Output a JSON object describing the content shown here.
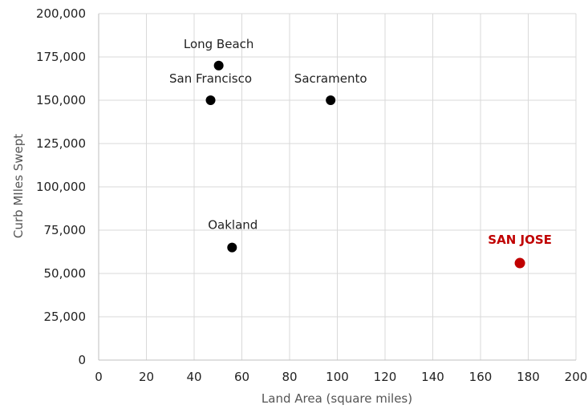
{
  "chart_data": {
    "type": "scatter",
    "xlabel": "Land Area (square miles)",
    "ylabel": "Curb MIles Swept",
    "xlim": [
      0,
      200
    ],
    "ylim": [
      0,
      200000
    ],
    "x_ticks": [
      0,
      20,
      40,
      60,
      80,
      100,
      120,
      140,
      160,
      180,
      200
    ],
    "y_ticks": [
      0,
      25000,
      50000,
      75000,
      100000,
      125000,
      150000,
      175000,
      200000
    ],
    "y_tick_labels": [
      "0",
      "25,000",
      "50,000",
      "75,000",
      "100,000",
      "125,000",
      "150,000",
      "175,000",
      "200,000"
    ],
    "grid": true,
    "points": [
      {
        "label": "Long Beach",
        "x": 50.3,
        "y": 170000,
        "highlight": false
      },
      {
        "label": "San Francisco",
        "x": 46.9,
        "y": 150000,
        "highlight": false
      },
      {
        "label": "Sacramento",
        "x": 97.2,
        "y": 150000,
        "highlight": false
      },
      {
        "label": "Oakland",
        "x": 55.9,
        "y": 65000,
        "highlight": false
      },
      {
        "label": "SAN JOSE",
        "x": 176.5,
        "y": 56000,
        "highlight": true
      }
    ],
    "colors": {
      "point": "#000000",
      "highlight": "#c00000",
      "grid": "#d9d9d9",
      "axis": "#bfbfbf"
    }
  }
}
